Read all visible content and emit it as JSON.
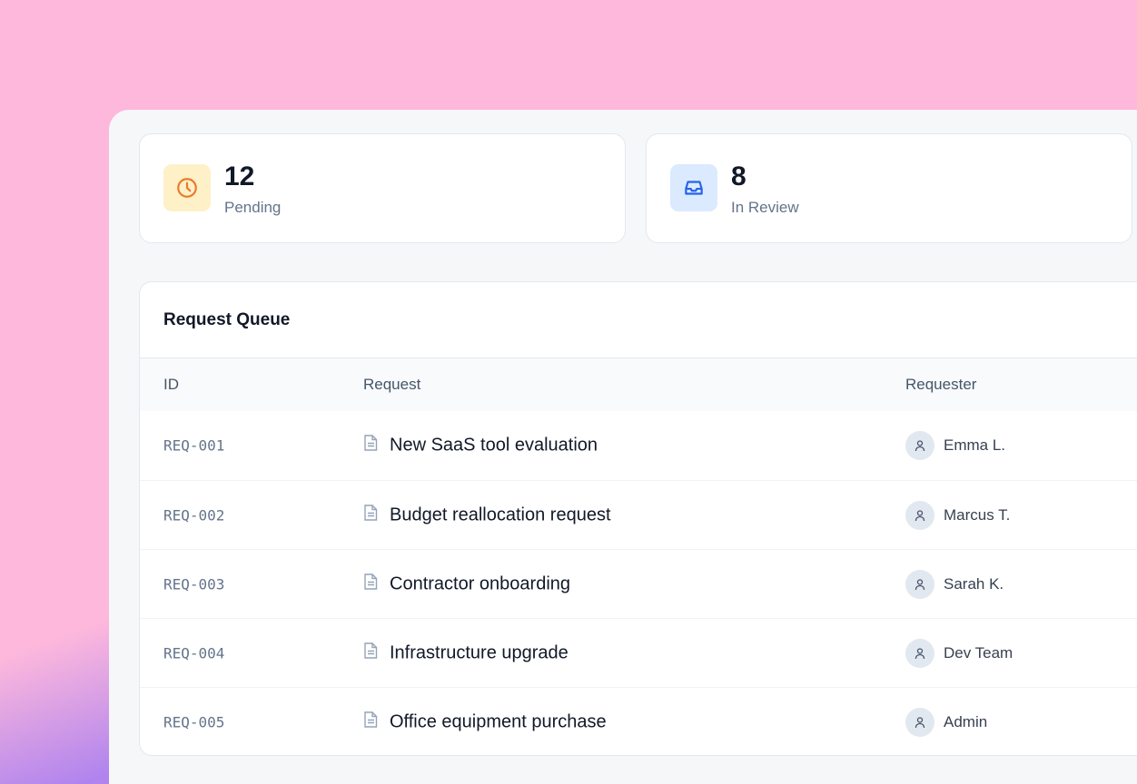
{
  "stats": [
    {
      "value": "12",
      "label": "Pending",
      "icon": "clock-icon",
      "icon_bg": "#fef0c7",
      "icon_color": "#ea7a2a"
    },
    {
      "value": "8",
      "label": "In Review",
      "icon": "inbox-icon",
      "icon_bg": "#dbeafe",
      "icon_color": "#2563eb"
    }
  ],
  "queue": {
    "title": "Request Queue",
    "columns": [
      "ID",
      "Request",
      "Requester"
    ],
    "rows": [
      {
        "id": "REQ-001",
        "request": "New SaaS tool evaluation",
        "requester": "Emma L."
      },
      {
        "id": "REQ-002",
        "request": "Budget reallocation request",
        "requester": "Marcus T."
      },
      {
        "id": "REQ-003",
        "request": "Contractor onboarding",
        "requester": "Sarah K."
      },
      {
        "id": "REQ-004",
        "request": "Infrastructure upgrade",
        "requester": "Dev Team"
      },
      {
        "id": "REQ-005",
        "request": "Office equipment purchase",
        "requester": "Admin"
      }
    ]
  }
}
